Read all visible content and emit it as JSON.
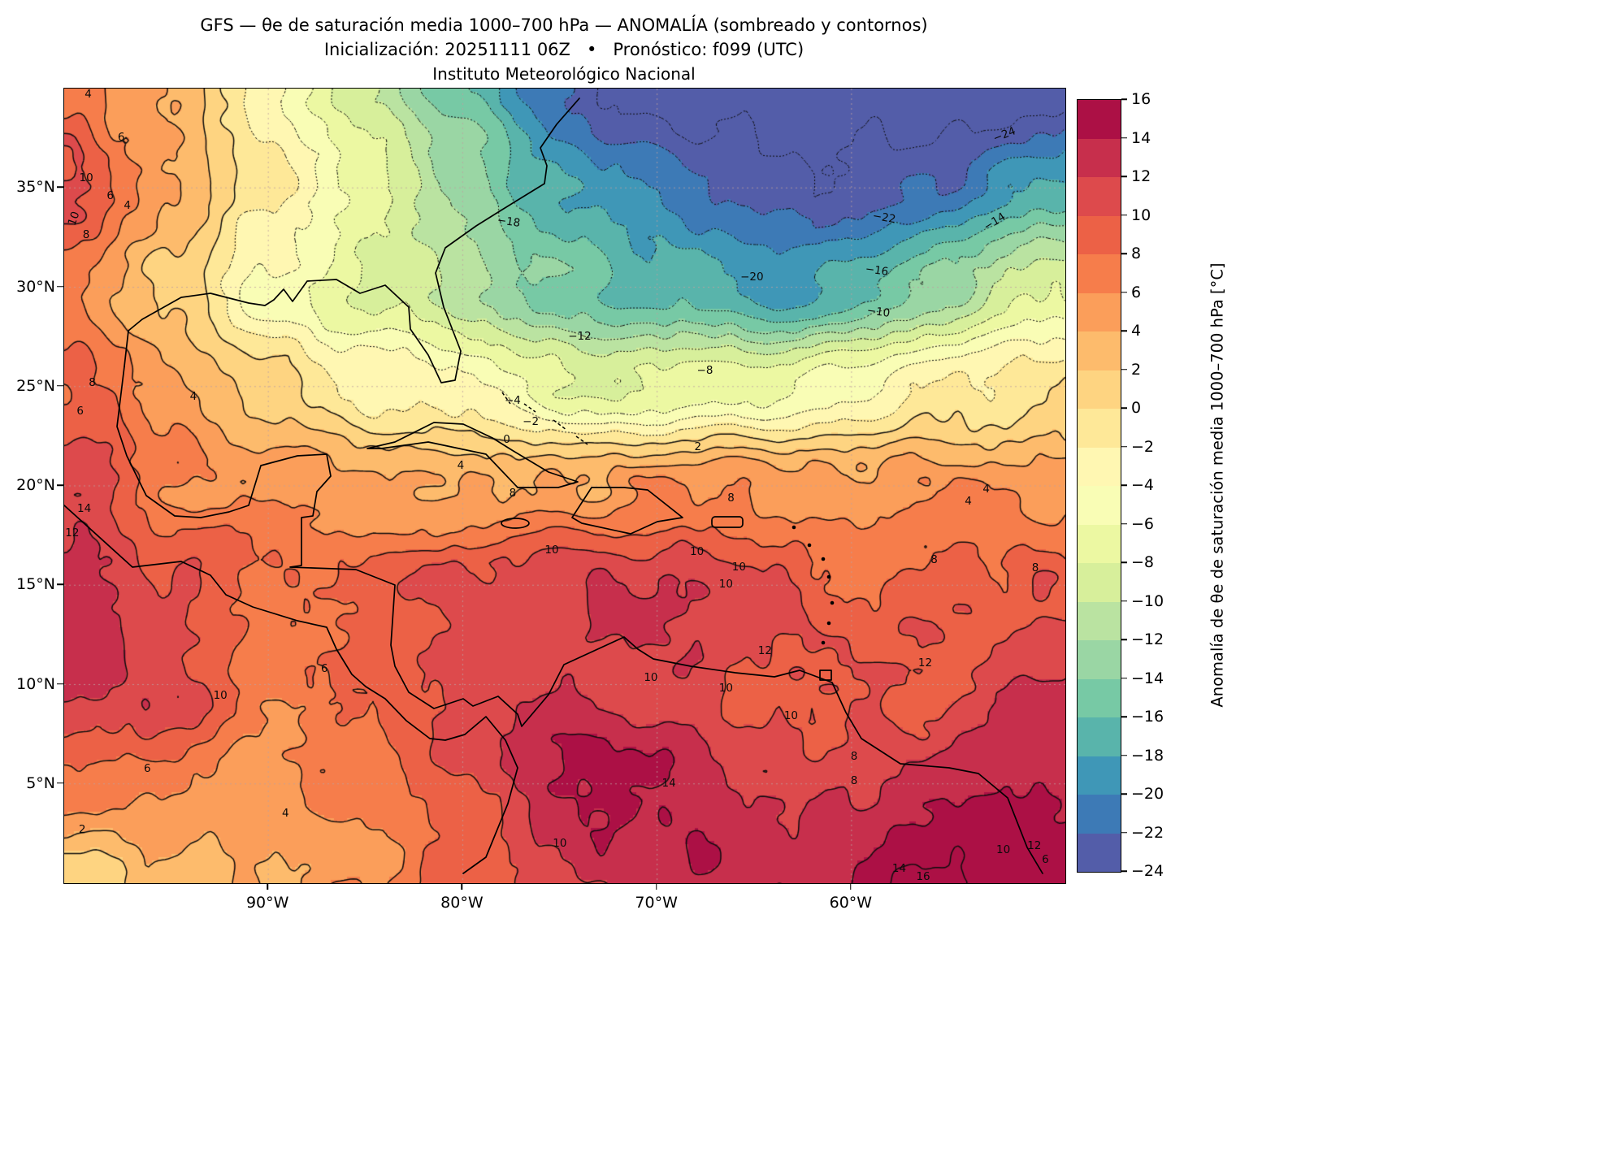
{
  "figure": {
    "title_line1": "GFS — θe de saturación media 1000–700 hPa — ANOMALÍA (sombreado y contornos)",
    "title_line2": "Inicialización: 20251111 06Z   •   Pronóstico: f099 (UTC)",
    "title_line3": "Instituto Meteorológico Nacional"
  },
  "chart_data": {
    "type": "heatmap",
    "title": "GFS — θe de saturación media 1000–700 hPa — ANOMALÍA (sombreado y contornos)",
    "subtitle": "Inicialización: 20251111 06Z • Pronóstico: f099 (UTC)",
    "institution": "Instituto Meteorológico Nacional",
    "extent": {
      "lon_min": -100.5,
      "lon_max": -49.0,
      "lat_min": 0,
      "lat_max": 40
    },
    "grid_on": true,
    "x_ticks": [
      {
        "label": "90°W",
        "lon": -90
      },
      {
        "label": "80°W",
        "lon": -80
      },
      {
        "label": "70°W",
        "lon": -70
      },
      {
        "label": "60°W",
        "lon": -60
      }
    ],
    "y_ticks": [
      {
        "label": "35°N",
        "lat": 35
      },
      {
        "label": "30°N",
        "lat": 30
      },
      {
        "label": "25°N",
        "lat": 25
      },
      {
        "label": "20°N",
        "lat": 20
      },
      {
        "label": "15°N",
        "lat": 15
      },
      {
        "label": "10°N",
        "lat": 10
      },
      {
        "label": "5°N",
        "lat": 5
      }
    ],
    "colorbar": {
      "min": -24,
      "max": 16,
      "step": 2,
      "label": "Anomalía de θe de saturación media 1000–700 hPa [°C]",
      "tick_labels": [
        "16",
        "14",
        "12",
        "10",
        "8",
        "6",
        "4",
        "2",
        "0",
        "−2",
        "−4",
        "−6",
        "−8",
        "−10",
        "−12",
        "−14",
        "−16",
        "−18",
        "−20",
        "−22",
        "−24"
      ],
      "colors": [
        "#535DA9",
        "#3D7AB6",
        "#3F97B7",
        "#59B4AB",
        "#77C9A5",
        "#9AD6A4",
        "#BAE3A1",
        "#D7EF9B",
        "#ECF8A2",
        "#F9FDB5",
        "#FFF7B2",
        "#FEE898",
        "#FED481",
        "#FDBB6C",
        "#FB9E5A",
        "#F67D4B",
        "#EC6146",
        "#DD4A4C",
        "#C72F4C",
        "#AC1045"
      ]
    },
    "grid": {
      "lats": [
        40,
        35,
        30,
        25,
        20,
        15,
        10,
        5,
        0
      ],
      "lons": [
        -100,
        -95,
        -90,
        -85,
        -80,
        -75,
        -70,
        -65,
        -60,
        -55,
        -50
      ],
      "values": [
        [
          8,
          4,
          -4,
          -10,
          -16,
          -22,
          -25,
          -25,
          -25,
          -25,
          -24
        ],
        [
          10,
          4,
          -2,
          -8,
          -14,
          -18,
          -21,
          -23,
          -23,
          -22,
          -18
        ],
        [
          7,
          2,
          -4,
          -8,
          -11,
          -14,
          -17,
          -19,
          -17,
          -13,
          -8
        ],
        [
          8,
          4,
          1,
          -2,
          -4,
          -7,
          -8,
          -7,
          -5,
          -2,
          1
        ],
        [
          12,
          7,
          5,
          5,
          4,
          5,
          6,
          6,
          5,
          5,
          5
        ],
        [
          13,
          10,
          8,
          9,
          11,
          12,
          12,
          10,
          8,
          8,
          9
        ],
        [
          13,
          11,
          7,
          8,
          11,
          12,
          11,
          10,
          10,
          9,
          12
        ],
        [
          8,
          6,
          5,
          7,
          10,
          13,
          14,
          12,
          12,
          13,
          13
        ],
        [
          1,
          3,
          4,
          6,
          9,
          12,
          13,
          14,
          14,
          16,
          14
        ]
      ]
    },
    "contour_levels": {
      "start": -24,
      "end": 16,
      "interval": 2,
      "negative_style": "dotted",
      "positive_style": "solid"
    },
    "contour_labels": [
      {
        "t": "4",
        "x": 2.4,
        "y": 0.7
      },
      {
        "t": "6",
        "x": 5.7,
        "y": 6.1
      },
      {
        "t": "10",
        "x": 2.2,
        "y": 11.2
      },
      {
        "t": "6",
        "x": 4.6,
        "y": 13.5
      },
      {
        "t": "4",
        "x": 6.3,
        "y": 14.7
      },
      {
        "t": "10",
        "x": 1.0,
        "y": 16.4,
        "r": -70
      },
      {
        "t": "8",
        "x": 2.2,
        "y": 18.4
      },
      {
        "t": "−24",
        "x": 93.9,
        "y": 5.8,
        "r": -22
      },
      {
        "t": "−18",
        "x": 44.4,
        "y": 16.8,
        "r": 8
      },
      {
        "t": "−22",
        "x": 81.9,
        "y": 16.3,
        "r": 10
      },
      {
        "t": "−14",
        "x": 92.9,
        "y": 16.8,
        "r": -32
      },
      {
        "t": "−16",
        "x": 81.2,
        "y": 22.9,
        "r": 8
      },
      {
        "t": "−20",
        "x": 68.7,
        "y": 23.7
      },
      {
        "t": "−10",
        "x": 81.3,
        "y": 28.1,
        "r": 8
      },
      {
        "t": "−12",
        "x": 51.5,
        "y": 31.2
      },
      {
        "t": "−8",
        "x": 64.0,
        "y": 35.5
      },
      {
        "t": "4",
        "x": 12.9,
        "y": 38.8
      },
      {
        "t": "8",
        "x": 2.8,
        "y": 37.0
      },
      {
        "t": "6",
        "x": 1.6,
        "y": 40.6
      },
      {
        "t": "−4",
        "x": 44.8,
        "y": 39.3
      },
      {
        "t": "−2",
        "x": 46.6,
        "y": 41.9
      },
      {
        "t": "0",
        "x": 44.2,
        "y": 44.2
      },
      {
        "t": "2",
        "x": 63.3,
        "y": 45.1
      },
      {
        "t": "4",
        "x": 39.6,
        "y": 47.4
      },
      {
        "t": "8",
        "x": 44.8,
        "y": 50.9
      },
      {
        "t": "8",
        "x": 66.6,
        "y": 51.5
      },
      {
        "t": "4",
        "x": 90.3,
        "y": 51.9
      },
      {
        "t": "4",
        "x": 92.1,
        "y": 50.4
      },
      {
        "t": "14",
        "x": 2.0,
        "y": 52.9
      },
      {
        "t": "12",
        "x": 0.8,
        "y": 55.9
      },
      {
        "t": "10",
        "x": 48.7,
        "y": 58.1
      },
      {
        "t": "10",
        "x": 63.2,
        "y": 58.3
      },
      {
        "t": "10",
        "x": 67.4,
        "y": 60.2
      },
      {
        "t": "8",
        "x": 86.9,
        "y": 59.3
      },
      {
        "t": "8",
        "x": 97.0,
        "y": 60.3
      },
      {
        "t": "10",
        "x": 66.1,
        "y": 62.4
      },
      {
        "t": "12",
        "x": 70.0,
        "y": 70.8
      },
      {
        "t": "6",
        "x": 26.0,
        "y": 73.0
      },
      {
        "t": "10",
        "x": 58.6,
        "y": 74.1
      },
      {
        "t": "10",
        "x": 66.1,
        "y": 75.5
      },
      {
        "t": "12",
        "x": 86.0,
        "y": 72.3
      },
      {
        "t": "10",
        "x": 15.6,
        "y": 76.4
      },
      {
        "t": "10",
        "x": 72.6,
        "y": 78.9
      },
      {
        "t": "8",
        "x": 78.9,
        "y": 84.0
      },
      {
        "t": "6",
        "x": 8.3,
        "y": 85.6
      },
      {
        "t": "14",
        "x": 60.4,
        "y": 87.4
      },
      {
        "t": "8",
        "x": 78.9,
        "y": 87.1
      },
      {
        "t": "4",
        "x": 22.1,
        "y": 91.2
      },
      {
        "t": "2",
        "x": 1.8,
        "y": 93.3
      },
      {
        "t": "10",
        "x": 49.5,
        "y": 95.0
      },
      {
        "t": "10",
        "x": 93.8,
        "y": 95.8
      },
      {
        "t": "12",
        "x": 96.9,
        "y": 95.3
      },
      {
        "t": "16",
        "x": 85.8,
        "y": 99.2
      },
      {
        "t": "14",
        "x": 83.4,
        "y": 98.2
      },
      {
        "t": "6",
        "x": 98.0,
        "y": 97.0
      }
    ]
  }
}
